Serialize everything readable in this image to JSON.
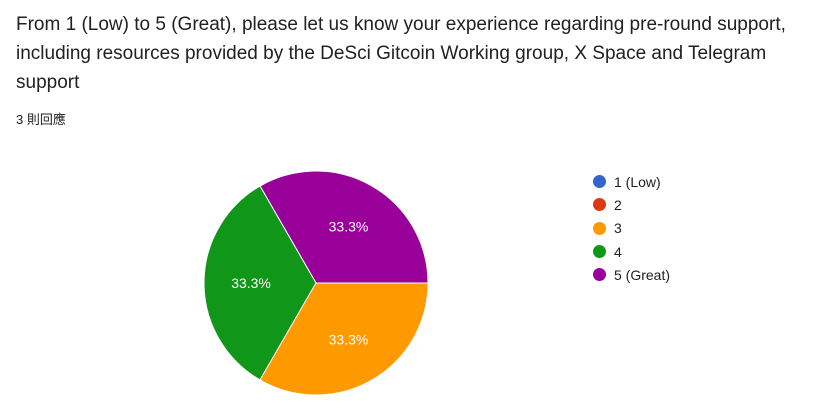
{
  "question": "From 1 (Low) to 5 (Great), please let us know your experience regarding pre-round support, including resources provided by the DeSci Gitcoin Working group, X Space and Telegram support",
  "response_count": "3 則回應",
  "chart_data": {
    "type": "pie",
    "categories": [
      "1 (Low)",
      "2",
      "3",
      "4",
      "5 (Great)"
    ],
    "values": [
      0,
      0,
      1,
      1,
      1
    ],
    "labels": [
      "",
      "",
      "33.3%",
      "33.3%",
      "33.3%"
    ],
    "colors": [
      "#3366cc",
      "#dc3912",
      "#ff9900",
      "#109618",
      "#990099"
    ],
    "legend": "right"
  }
}
